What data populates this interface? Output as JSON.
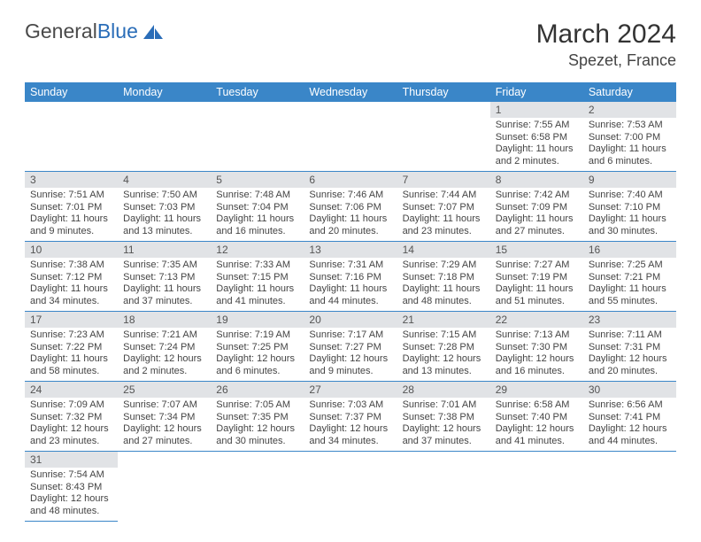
{
  "logo": {
    "text1": "General",
    "text2": "Blue"
  },
  "title": "March 2024",
  "location": "Spezet, France",
  "colors": {
    "header_bg": "#3a86c8",
    "header_text": "#ffffff",
    "daynum_bg": "#e1e3e6",
    "border": "#3a86c8",
    "text": "#444444",
    "logo_gray": "#4a4a4a",
    "logo_blue": "#2a6db8"
  },
  "weekdays": [
    "Sunday",
    "Monday",
    "Tuesday",
    "Wednesday",
    "Thursday",
    "Friday",
    "Saturday"
  ],
  "weeks": [
    [
      null,
      null,
      null,
      null,
      null,
      {
        "n": "1",
        "sunrise": "7:55 AM",
        "sunset": "6:58 PM",
        "day_h": "11",
        "day_m": "2"
      },
      {
        "n": "2",
        "sunrise": "7:53 AM",
        "sunset": "7:00 PM",
        "day_h": "11",
        "day_m": "6"
      }
    ],
    [
      {
        "n": "3",
        "sunrise": "7:51 AM",
        "sunset": "7:01 PM",
        "day_h": "11",
        "day_m": "9"
      },
      {
        "n": "4",
        "sunrise": "7:50 AM",
        "sunset": "7:03 PM",
        "day_h": "11",
        "day_m": "13"
      },
      {
        "n": "5",
        "sunrise": "7:48 AM",
        "sunset": "7:04 PM",
        "day_h": "11",
        "day_m": "16"
      },
      {
        "n": "6",
        "sunrise": "7:46 AM",
        "sunset": "7:06 PM",
        "day_h": "11",
        "day_m": "20"
      },
      {
        "n": "7",
        "sunrise": "7:44 AM",
        "sunset": "7:07 PM",
        "day_h": "11",
        "day_m": "23"
      },
      {
        "n": "8",
        "sunrise": "7:42 AM",
        "sunset": "7:09 PM",
        "day_h": "11",
        "day_m": "27"
      },
      {
        "n": "9",
        "sunrise": "7:40 AM",
        "sunset": "7:10 PM",
        "day_h": "11",
        "day_m": "30"
      }
    ],
    [
      {
        "n": "10",
        "sunrise": "7:38 AM",
        "sunset": "7:12 PM",
        "day_h": "11",
        "day_m": "34"
      },
      {
        "n": "11",
        "sunrise": "7:35 AM",
        "sunset": "7:13 PM",
        "day_h": "11",
        "day_m": "37"
      },
      {
        "n": "12",
        "sunrise": "7:33 AM",
        "sunset": "7:15 PM",
        "day_h": "11",
        "day_m": "41"
      },
      {
        "n": "13",
        "sunrise": "7:31 AM",
        "sunset": "7:16 PM",
        "day_h": "11",
        "day_m": "44"
      },
      {
        "n": "14",
        "sunrise": "7:29 AM",
        "sunset": "7:18 PM",
        "day_h": "11",
        "day_m": "48"
      },
      {
        "n": "15",
        "sunrise": "7:27 AM",
        "sunset": "7:19 PM",
        "day_h": "11",
        "day_m": "51"
      },
      {
        "n": "16",
        "sunrise": "7:25 AM",
        "sunset": "7:21 PM",
        "day_h": "11",
        "day_m": "55"
      }
    ],
    [
      {
        "n": "17",
        "sunrise": "7:23 AM",
        "sunset": "7:22 PM",
        "day_h": "11",
        "day_m": "58"
      },
      {
        "n": "18",
        "sunrise": "7:21 AM",
        "sunset": "7:24 PM",
        "day_h": "12",
        "day_m": "2"
      },
      {
        "n": "19",
        "sunrise": "7:19 AM",
        "sunset": "7:25 PM",
        "day_h": "12",
        "day_m": "6"
      },
      {
        "n": "20",
        "sunrise": "7:17 AM",
        "sunset": "7:27 PM",
        "day_h": "12",
        "day_m": "9"
      },
      {
        "n": "21",
        "sunrise": "7:15 AM",
        "sunset": "7:28 PM",
        "day_h": "12",
        "day_m": "13"
      },
      {
        "n": "22",
        "sunrise": "7:13 AM",
        "sunset": "7:30 PM",
        "day_h": "12",
        "day_m": "16"
      },
      {
        "n": "23",
        "sunrise": "7:11 AM",
        "sunset": "7:31 PM",
        "day_h": "12",
        "day_m": "20"
      }
    ],
    [
      {
        "n": "24",
        "sunrise": "7:09 AM",
        "sunset": "7:32 PM",
        "day_h": "12",
        "day_m": "23"
      },
      {
        "n": "25",
        "sunrise": "7:07 AM",
        "sunset": "7:34 PM",
        "day_h": "12",
        "day_m": "27"
      },
      {
        "n": "26",
        "sunrise": "7:05 AM",
        "sunset": "7:35 PM",
        "day_h": "12",
        "day_m": "30"
      },
      {
        "n": "27",
        "sunrise": "7:03 AM",
        "sunset": "7:37 PM",
        "day_h": "12",
        "day_m": "34"
      },
      {
        "n": "28",
        "sunrise": "7:01 AM",
        "sunset": "7:38 PM",
        "day_h": "12",
        "day_m": "37"
      },
      {
        "n": "29",
        "sunrise": "6:58 AM",
        "sunset": "7:40 PM",
        "day_h": "12",
        "day_m": "41"
      },
      {
        "n": "30",
        "sunrise": "6:56 AM",
        "sunset": "7:41 PM",
        "day_h": "12",
        "day_m": "44"
      }
    ],
    [
      {
        "n": "31",
        "sunrise": "7:54 AM",
        "sunset": "8:43 PM",
        "day_h": "12",
        "day_m": "48"
      },
      null,
      null,
      null,
      null,
      null,
      null
    ]
  ]
}
